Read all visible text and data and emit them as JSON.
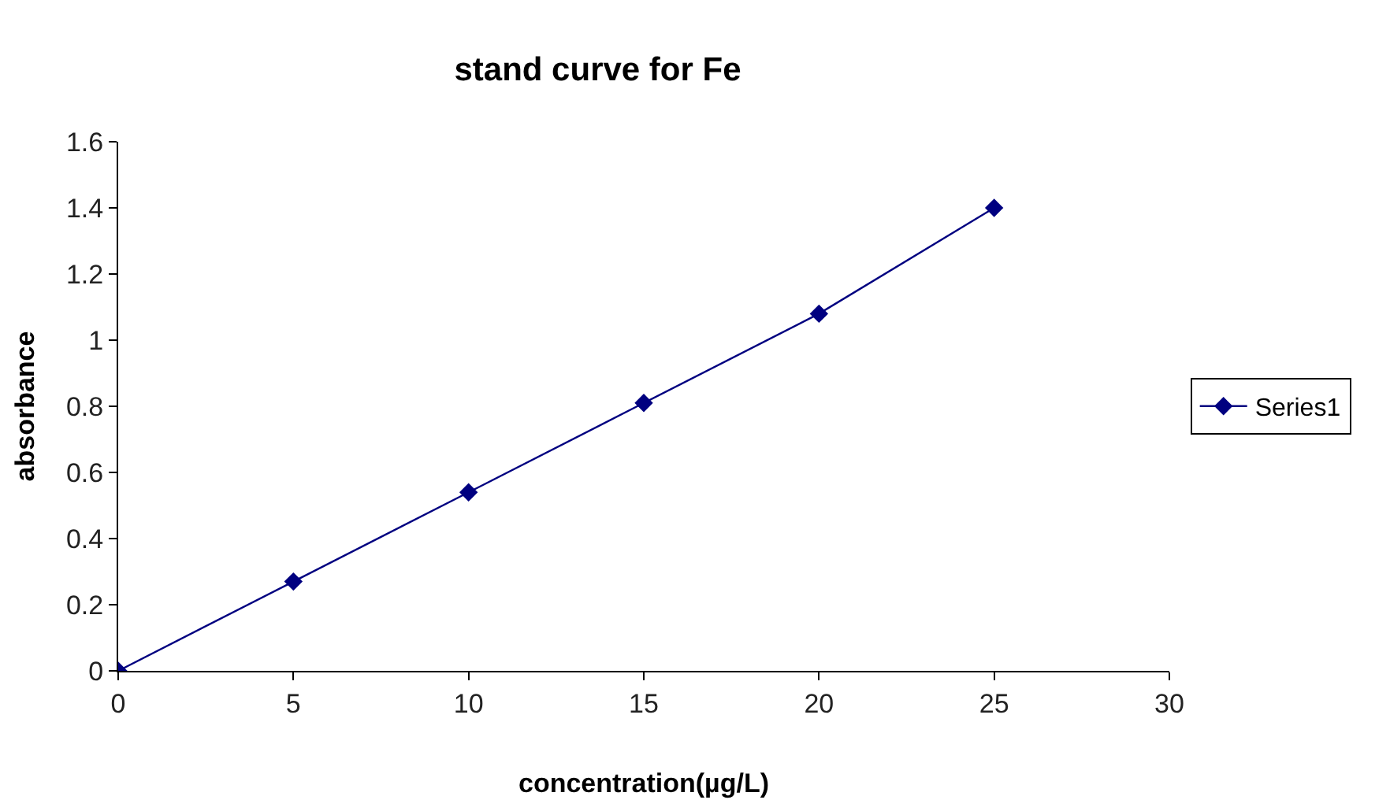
{
  "chart_data": {
    "type": "line",
    "title": "stand curve for Fe",
    "xlabel": "concentration(µg/L)",
    "ylabel": "absorbance",
    "x": [
      0,
      5,
      10,
      15,
      20,
      25
    ],
    "series": [
      {
        "name": "Series1",
        "color": "#000080",
        "values": [
          0,
          0.27,
          0.54,
          0.81,
          1.08,
          1.4
        ]
      }
    ],
    "xlim": [
      0,
      30
    ],
    "xticks": [
      0,
      5,
      10,
      15,
      20,
      25,
      30
    ],
    "ylim": [
      0,
      1.6
    ],
    "yticks": [
      0,
      0.2,
      0.4,
      0.6,
      0.8,
      1,
      1.2,
      1.4,
      1.6
    ],
    "legend": "right",
    "marker": "diamond",
    "line_style": "solid"
  }
}
